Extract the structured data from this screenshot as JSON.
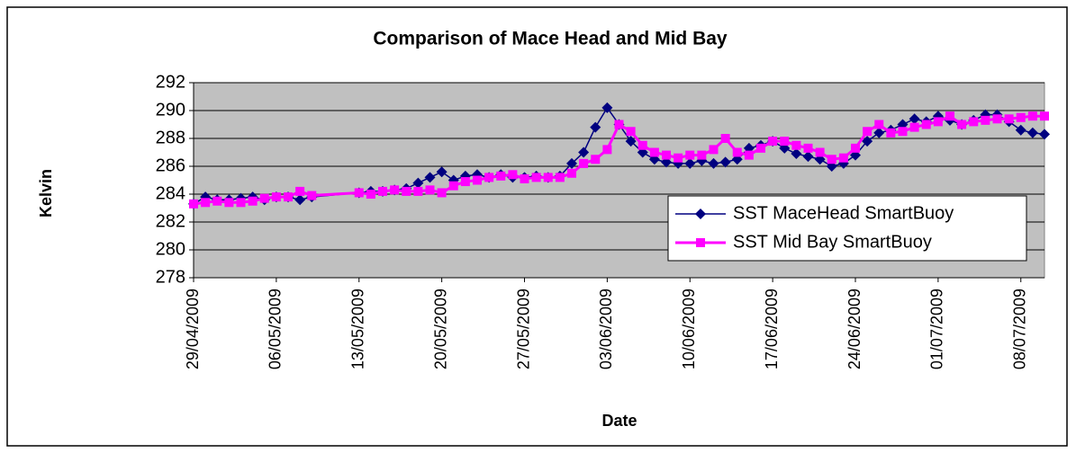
{
  "chart_data": {
    "type": "line",
    "title": "Comparison of Mace Head and Mid Bay",
    "x_label": "Date",
    "y_label": "Kelvin",
    "x": [
      "29/04/2009",
      "30/04/2009",
      "01/05/2009",
      "02/05/2009",
      "03/05/2009",
      "04/05/2009",
      "05/05/2009",
      "06/05/2009",
      "07/05/2009",
      "08/05/2009",
      "09/05/2009",
      "13/05/2009",
      "14/05/2009",
      "15/05/2009",
      "16/05/2009",
      "17/05/2009",
      "18/05/2009",
      "19/05/2009",
      "20/05/2009",
      "21/05/2009",
      "22/05/2009",
      "23/05/2009",
      "24/05/2009",
      "25/05/2009",
      "26/05/2009",
      "27/05/2009",
      "28/05/2009",
      "29/05/2009",
      "30/05/2009",
      "31/05/2009",
      "01/06/2009",
      "02/06/2009",
      "03/06/2009",
      "04/06/2009",
      "05/06/2009",
      "06/06/2009",
      "07/06/2009",
      "08/06/2009",
      "09/06/2009",
      "10/06/2009",
      "11/06/2009",
      "12/06/2009",
      "13/06/2009",
      "14/06/2009",
      "15/06/2009",
      "16/06/2009",
      "17/06/2009",
      "18/06/2009",
      "19/06/2009",
      "20/06/2009",
      "21/06/2009",
      "22/06/2009",
      "23/06/2009",
      "24/06/2009",
      "25/06/2009",
      "26/06/2009",
      "27/06/2009",
      "28/06/2009",
      "29/06/2009",
      "30/06/2009",
      "01/07/2009",
      "02/07/2009",
      "03/07/2009",
      "04/07/2009",
      "05/07/2009",
      "06/07/2009",
      "07/07/2009",
      "08/07/2009",
      "09/07/2009",
      "10/07/2009"
    ],
    "series": [
      {
        "name": "SST MaceHead SmartBuoy",
        "color": "#000080",
        "marker": "diamond",
        "values": [
          283.3,
          283.8,
          283.6,
          283.6,
          283.7,
          283.8,
          283.6,
          283.8,
          283.8,
          283.6,
          283.8,
          284.1,
          284.2,
          284.2,
          284.3,
          284.4,
          284.8,
          285.2,
          285.6,
          285.0,
          285.3,
          285.4,
          285.2,
          285.4,
          285.2,
          285.2,
          285.3,
          285.2,
          285.3,
          286.2,
          287.0,
          288.8,
          290.2,
          289.0,
          287.8,
          287.0,
          286.5,
          286.3,
          286.2,
          286.2,
          286.4,
          286.2,
          286.3,
          286.5,
          287.3,
          287.5,
          287.8,
          287.3,
          286.9,
          286.7,
          286.5,
          286.0,
          286.2,
          286.8,
          287.8,
          288.4,
          288.6,
          289.0,
          289.4,
          289.2,
          289.6,
          289.3,
          289.0,
          289.3,
          289.7,
          289.7,
          289.2,
          288.6,
          288.4,
          288.3
        ]
      },
      {
        "name": "SST Mid Bay SmartBuoy",
        "color": "#ff00ff",
        "marker": "square",
        "values": [
          283.3,
          283.4,
          283.5,
          283.4,
          283.4,
          283.5,
          283.7,
          283.8,
          283.8,
          284.2,
          283.9,
          284.1,
          284.0,
          284.2,
          284.3,
          284.2,
          284.2,
          284.3,
          284.1,
          284.6,
          284.9,
          285.0,
          285.2,
          285.3,
          285.4,
          285.1,
          285.2,
          285.2,
          285.2,
          285.5,
          286.2,
          286.5,
          287.2,
          289.0,
          288.5,
          287.5,
          287.0,
          286.8,
          286.6,
          286.8,
          286.8,
          287.2,
          288.0,
          287.0,
          286.8,
          287.3,
          287.8,
          287.8,
          287.5,
          287.3,
          287.0,
          286.5,
          286.6,
          287.3,
          288.5,
          289.0,
          288.4,
          288.5,
          288.8,
          289.0,
          289.2,
          289.6,
          289.0,
          289.2,
          289.3,
          289.4,
          289.4,
          289.5,
          289.6,
          289.6
        ]
      }
    ],
    "xlim": [
      "29/04/2009",
      "10/07/2009"
    ],
    "xticks": [
      "29/04/2009",
      "06/05/2009",
      "13/05/2009",
      "20/05/2009",
      "27/05/2009",
      "03/06/2009",
      "10/06/2009",
      "17/06/2009",
      "24/06/2009",
      "01/07/2009",
      "08/07/2009"
    ],
    "ylim": [
      278,
      292
    ],
    "yticks": [
      278,
      280,
      282,
      284,
      286,
      288,
      290,
      292
    ],
    "grid": true,
    "plot_background": "#c0c0c0",
    "legend": "right"
  }
}
